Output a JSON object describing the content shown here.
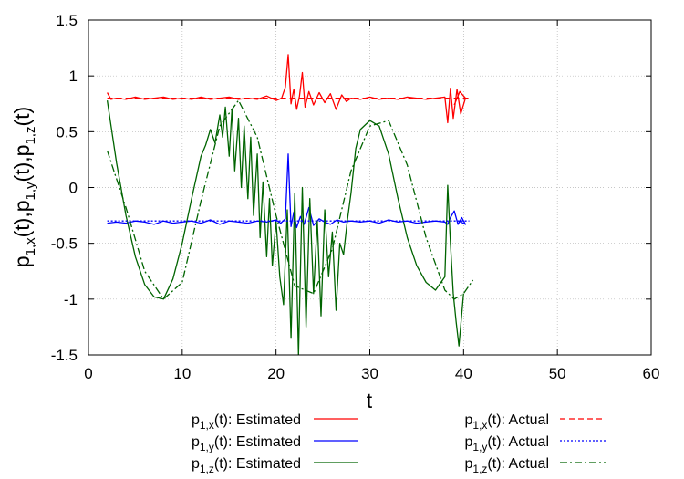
{
  "chart_data": {
    "type": "line",
    "xlabel": "t",
    "ylabel": {
      "base": "p",
      "parts": [
        {
          "sub": "1,x",
          "tail": "(t),"
        },
        {
          "sub": "1,y",
          "tail": "(t),"
        },
        {
          "sub": "1,z",
          "tail": "(t)"
        }
      ]
    },
    "xlim": [
      0,
      60
    ],
    "ylim": [
      -1.5,
      1.5
    ],
    "xticks": [
      0,
      10,
      20,
      30,
      40,
      50,
      60
    ],
    "yticks": [
      -1.5,
      -1,
      -0.5,
      0,
      0.5,
      1,
      1.5
    ],
    "xtick_labels": [
      "0",
      "10",
      "20",
      "30",
      "40",
      "50",
      "60"
    ],
    "ytick_labels": [
      "-1.5",
      "-1",
      "-0.5",
      "0",
      "0.5",
      "1",
      "1.5"
    ],
    "grid": true,
    "legend_position": "bottom",
    "series": [
      {
        "id": "px_est",
        "legend": {
          "base": "p",
          "sub": "1,x",
          "tail": "(t): Estimated"
        },
        "color": "#ff0000",
        "dash": "solid",
        "x": [
          2,
          2.4,
          3,
          4,
          5,
          6,
          7,
          8,
          9,
          10,
          11,
          12,
          13,
          14,
          15,
          16,
          17,
          18,
          19,
          20,
          20.6,
          21,
          21.3,
          21.6,
          21.9,
          22.2,
          22.5,
          22.8,
          23.1,
          23.5,
          24,
          24.6,
          25.2,
          25.8,
          26.4,
          27,
          27.5,
          28,
          29,
          30,
          31,
          32,
          33,
          34,
          35,
          36,
          37,
          38,
          38.3,
          38.6,
          38.9,
          39.3,
          39.7,
          40.2,
          39.6,
          39
        ],
        "y": [
          0.85,
          0.79,
          0.8,
          0.79,
          0.81,
          0.79,
          0.8,
          0.81,
          0.79,
          0.8,
          0.79,
          0.81,
          0.79,
          0.8,
          0.81,
          0.79,
          0.8,
          0.79,
          0.82,
          0.78,
          0.8,
          0.9,
          1.19,
          0.75,
          0.88,
          0.7,
          0.82,
          1.03,
          0.72,
          0.86,
          0.74,
          0.85,
          0.76,
          0.84,
          0.7,
          0.83,
          0.77,
          0.8,
          0.79,
          0.81,
          0.79,
          0.8,
          0.79,
          0.81,
          0.8,
          0.79,
          0.8,
          0.81,
          0.58,
          0.89,
          0.62,
          0.88,
          0.66,
          0.8,
          0.86,
          0.74
        ]
      },
      {
        "id": "py_est",
        "legend": {
          "base": "p",
          "sub": "1,y",
          "tail": "(t): Estimated"
        },
        "color": "#0000ff",
        "dash": "solid",
        "x": [
          2,
          3,
          4,
          5,
          6,
          7,
          8,
          9,
          10,
          11,
          12,
          13,
          14,
          15,
          16,
          17,
          18,
          19,
          20,
          20.5,
          21,
          21.3,
          21.6,
          21.9,
          22.2,
          22.6,
          23,
          23.5,
          24,
          24.6,
          25.2,
          25.8,
          26.5,
          27.2,
          28,
          29,
          30,
          31,
          32,
          33,
          34,
          35,
          36,
          37,
          38,
          38.3,
          38.6,
          39,
          39.4,
          39.8,
          40.2,
          39.5
        ],
        "y": [
          -0.32,
          -0.31,
          -0.32,
          -0.3,
          -0.31,
          -0.33,
          -0.3,
          -0.32,
          -0.31,
          -0.3,
          -0.32,
          -0.29,
          -0.33,
          -0.3,
          -0.31,
          -0.32,
          -0.3,
          -0.31,
          -0.29,
          -0.32,
          -0.28,
          0.3,
          -0.35,
          -0.22,
          -0.36,
          -0.26,
          -0.33,
          -0.18,
          -0.34,
          -0.28,
          -0.31,
          -0.33,
          -0.29,
          -0.31,
          -0.3,
          -0.31,
          -0.3,
          -0.32,
          -0.29,
          -0.31,
          -0.3,
          -0.32,
          -0.31,
          -0.3,
          -0.31,
          -0.33,
          -0.27,
          -0.21,
          -0.33,
          -0.27,
          -0.33,
          -0.3
        ]
      },
      {
        "id": "pz_est",
        "legend": {
          "base": "p",
          "sub": "1,z",
          "tail": "(t): Estimated"
        },
        "color": "#006400",
        "dash": "solid",
        "x": [
          2,
          2.5,
          3,
          4,
          5,
          6,
          7,
          8,
          9,
          10,
          11,
          12,
          12.5,
          13,
          13.5,
          14,
          14.3,
          14.6,
          15,
          15.3,
          15.6,
          16,
          16.3,
          16.6,
          17,
          17.3,
          17.6,
          18,
          18.3,
          18.6,
          19,
          19.3,
          19.6,
          20,
          20.4,
          20.8,
          21.2,
          21.6,
          22,
          22.4,
          22.8,
          23.2,
          23.6,
          24,
          24.4,
          24.8,
          25.2,
          25.6,
          26,
          26.4,
          26.8,
          27.2,
          27.6,
          28,
          28.5,
          29,
          30,
          31,
          32,
          33,
          34,
          35,
          36,
          37,
          38,
          38.3,
          38.6,
          38.9,
          39.2,
          39.5,
          40
        ],
        "y": [
          0.78,
          0.5,
          0.22,
          -0.25,
          -0.62,
          -0.87,
          -0.98,
          -1.0,
          -0.82,
          -0.5,
          -0.1,
          0.28,
          0.38,
          0.52,
          0.4,
          0.65,
          0.45,
          0.72,
          0.28,
          0.7,
          0.15,
          0.62,
          0.0,
          0.55,
          -0.1,
          0.45,
          -0.25,
          0.3,
          -0.45,
          0.05,
          -0.62,
          -0.1,
          -0.7,
          -0.3,
          -0.8,
          -1.05,
          -0.2,
          -1.35,
          -0.05,
          -1.5,
          0.0,
          -1.25,
          -0.1,
          -0.95,
          -0.3,
          -1.15,
          -0.2,
          -0.8,
          -0.4,
          -1.1,
          -0.5,
          -0.6,
          -0.3,
          -0.05,
          0.35,
          0.52,
          0.6,
          0.55,
          0.3,
          -0.1,
          -0.45,
          -0.7,
          -0.85,
          -0.92,
          -0.8,
          0.02,
          -0.5,
          -0.95,
          -1.2,
          -1.42,
          -0.95
        ]
      },
      {
        "id": "px_act",
        "legend": {
          "base": "p",
          "sub": "1,x",
          "tail": "(t): Actual"
        },
        "color": "#ff0000",
        "dash": "dashed",
        "x": [
          2,
          6,
          10,
          14,
          18,
          22,
          26,
          30,
          34,
          38,
          40.6
        ],
        "y": [
          0.8,
          0.8,
          0.8,
          0.8,
          0.8,
          0.8,
          0.8,
          0.8,
          0.8,
          0.8,
          0.8
        ]
      },
      {
        "id": "py_act",
        "legend": {
          "base": "p",
          "sub": "1,y",
          "tail": "(t): Actual"
        },
        "color": "#0000ff",
        "dash": "dotted",
        "x": [
          2,
          6,
          10,
          14,
          18,
          22,
          26,
          30,
          34,
          38,
          40.6
        ],
        "y": [
          -0.3,
          -0.3,
          -0.3,
          -0.3,
          -0.3,
          -0.3,
          -0.3,
          -0.3,
          -0.3,
          -0.3,
          -0.3
        ]
      },
      {
        "id": "pz_act",
        "legend": {
          "base": "p",
          "sub": "1,z",
          "tail": "(t): Actual"
        },
        "color": "#006400",
        "dash": "dashdot",
        "x": [
          2,
          4,
          6,
          8,
          10,
          12,
          14,
          16,
          18,
          20,
          22,
          24,
          26,
          28,
          30,
          32,
          34,
          36,
          38,
          39,
          40,
          41
        ],
        "y": [
          0.33,
          -0.18,
          -0.75,
          -1.0,
          -0.85,
          -0.12,
          0.55,
          0.78,
          0.45,
          -0.25,
          -0.88,
          -0.95,
          -0.55,
          0.15,
          0.55,
          0.6,
          0.2,
          -0.45,
          -0.92,
          -1.0,
          -0.95,
          -0.83
        ]
      }
    ]
  }
}
